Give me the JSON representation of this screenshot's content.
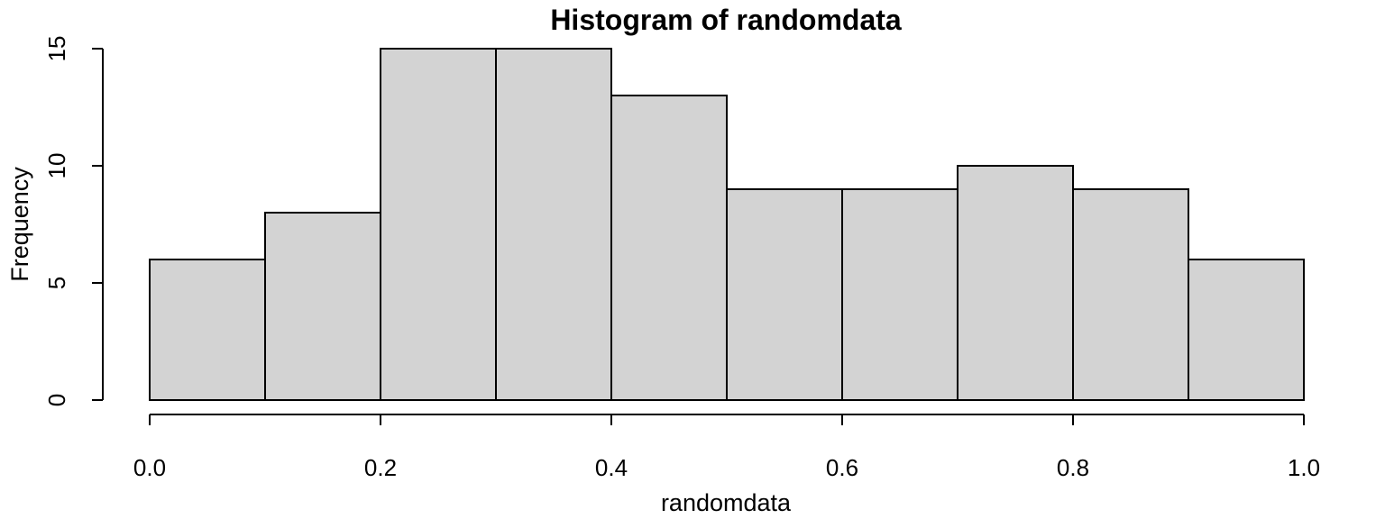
{
  "chart_data": {
    "type": "bar",
    "subtype": "histogram",
    "title": "Histogram of randomdata",
    "xlabel": "randomdata",
    "ylabel": "Frequency",
    "bins": [
      {
        "start": 0.0,
        "end": 0.1,
        "count": 6
      },
      {
        "start": 0.1,
        "end": 0.2,
        "count": 8
      },
      {
        "start": 0.2,
        "end": 0.3,
        "count": 15
      },
      {
        "start": 0.3,
        "end": 0.4,
        "count": 15
      },
      {
        "start": 0.4,
        "end": 0.5,
        "count": 13
      },
      {
        "start": 0.5,
        "end": 0.6,
        "count": 9
      },
      {
        "start": 0.6,
        "end": 0.7,
        "count": 9
      },
      {
        "start": 0.7,
        "end": 0.8,
        "count": 10
      },
      {
        "start": 0.8,
        "end": 0.9,
        "count": 9
      },
      {
        "start": 0.9,
        "end": 1.0,
        "count": 6
      }
    ],
    "xlim": [
      0.0,
      1.0
    ],
    "ylim": [
      0,
      15
    ],
    "x_ticks": [
      {
        "value": 0.0,
        "label": "0.0"
      },
      {
        "value": 0.2,
        "label": "0.2"
      },
      {
        "value": 0.4,
        "label": "0.4"
      },
      {
        "value": 0.6,
        "label": "0.6"
      },
      {
        "value": 0.8,
        "label": "0.8"
      },
      {
        "value": 1.0,
        "label": "1.0"
      }
    ],
    "y_ticks": [
      {
        "value": 0,
        "label": "0"
      },
      {
        "value": 5,
        "label": "5"
      },
      {
        "value": 10,
        "label": "10"
      },
      {
        "value": 15,
        "label": "15"
      }
    ],
    "bar_color": "#d3d3d3",
    "edge_color": "#000000",
    "grid": false,
    "legend": "none"
  }
}
